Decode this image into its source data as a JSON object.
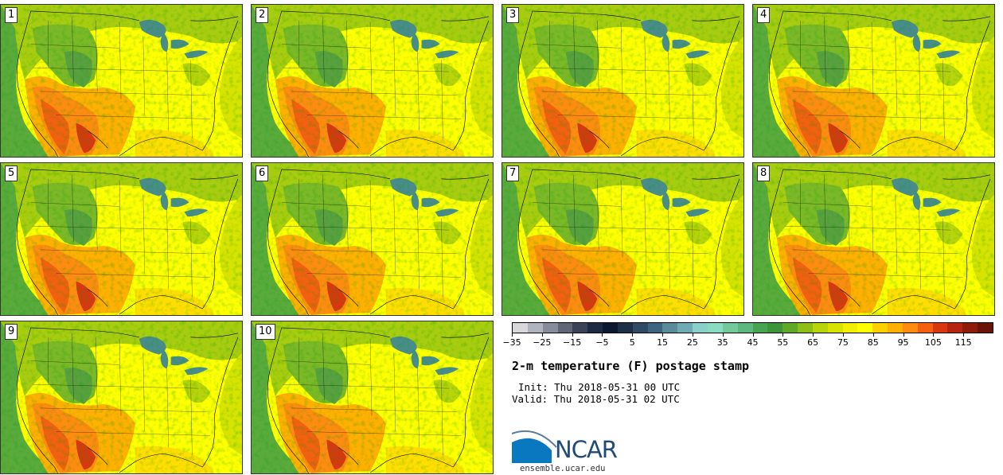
{
  "panels": [
    {
      "label": "1"
    },
    {
      "label": "2"
    },
    {
      "label": "3"
    },
    {
      "label": "4"
    },
    {
      "label": "5"
    },
    {
      "label": "6"
    },
    {
      "label": "7"
    },
    {
      "label": "8"
    },
    {
      "label": "9"
    },
    {
      "label": "10"
    }
  ],
  "colorbar": {
    "colors": [
      "#d8d8dc",
      "#b0b4be",
      "#868c9c",
      "#5e6678",
      "#3a4258",
      "#1e2a44",
      "#0c1830",
      "#1c2e48",
      "#2e4a64",
      "#3e6480",
      "#5a8a9c",
      "#70aab4",
      "#8ad0c8",
      "#8adcc0",
      "#74c89a",
      "#5cb87e",
      "#48a450",
      "#3e9438",
      "#60a828",
      "#8cc014",
      "#b8d40a",
      "#d8e400",
      "#f2f000",
      "#ffff00",
      "#ffd000",
      "#ffb000",
      "#ff8c10",
      "#f26010",
      "#d83810",
      "#b42410",
      "#8c1c0c",
      "#6a1408"
    ],
    "tick_labels": [
      "−35",
      "−25",
      "−15",
      "−5",
      "5",
      "15",
      "25",
      "35",
      "45",
      "55",
      "65",
      "75",
      "85",
      "95",
      "105",
      "115"
    ]
  },
  "title": "2-m temperature (F) postage stamp",
  "init": "Init: Thu 2018-05-31 00 UTC",
  "valid": "Valid: Thu 2018-05-31 02 UTC",
  "logo_text": "NCAR",
  "url": "ensemble.ucar.edu"
}
